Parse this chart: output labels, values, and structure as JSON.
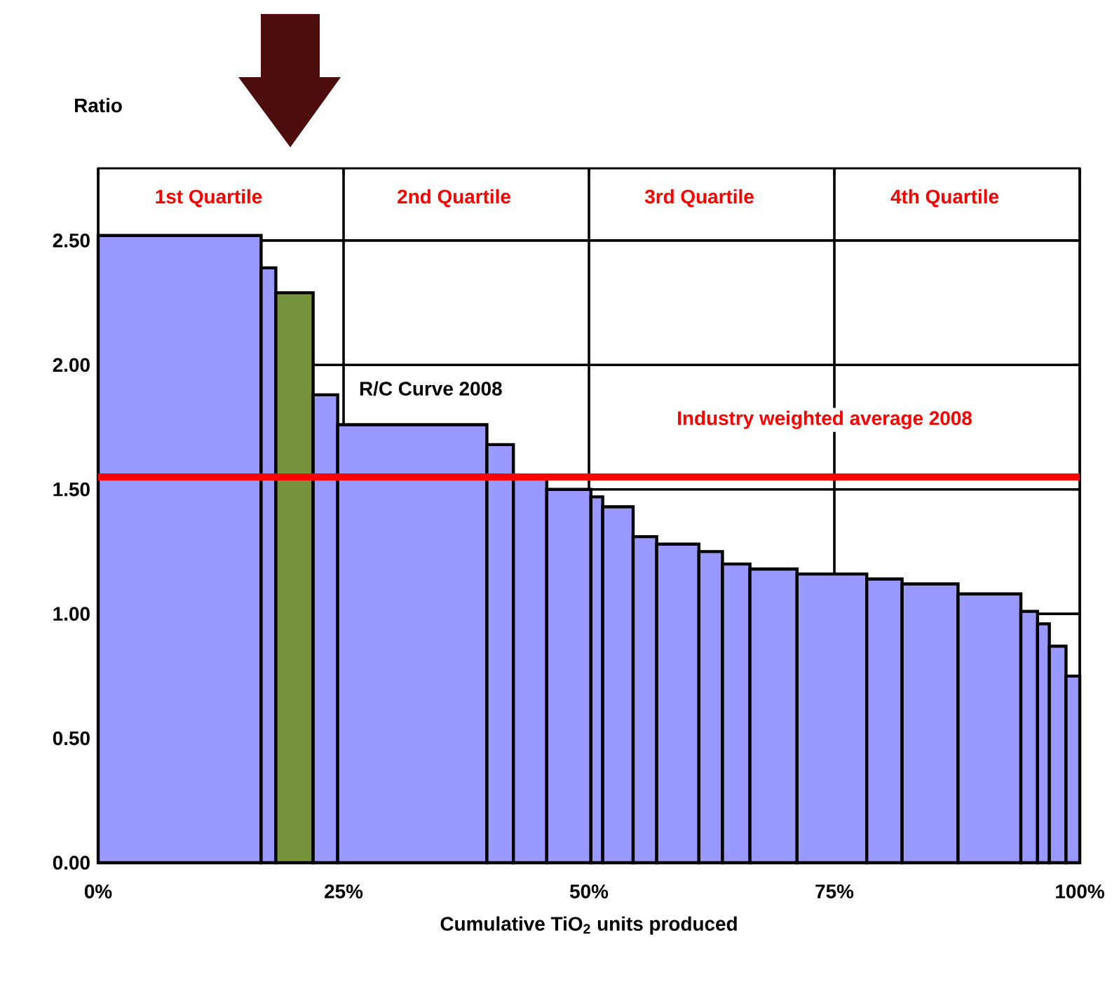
{
  "chart_data": {
    "type": "histogram",
    "xlabel": "Cumulative TiO$_{2}$ units produced",
    "ylabel": "Ratio",
    "bins": [
      0,
      16.6,
      18.1,
      21.9,
      24.4,
      39.6,
      42.3,
      45.7,
      50.2,
      51.4,
      54.5,
      56.9,
      61.2,
      63.6,
      66.4,
      71.2,
      78.3,
      81.9,
      87.6,
      94.0,
      95.7,
      96.9,
      98.6,
      100
    ],
    "values": [
      2.52,
      2.39,
      2.29,
      1.88,
      1.76,
      1.68,
      1.55,
      1.5,
      1.47,
      1.43,
      1.31,
      1.28,
      1.25,
      1.2,
      1.18,
      1.16,
      1.14,
      1.12,
      1.08,
      1.01,
      0.96,
      0.87,
      0.75
    ],
    "colors": [
      "#9999ff",
      "#9999ff",
      "#77933c",
      "#9999ff",
      "#9999ff",
      "#9999ff",
      "#9999ff",
      "#9999ff",
      "#9999ff",
      "#9999ff",
      "#9999ff",
      "#9999ff",
      "#9999ff",
      "#9999ff",
      "#9999ff",
      "#9999ff",
      "#9999ff",
      "#9999ff",
      "#9999ff",
      "#9999ff",
      "#9999ff",
      "#9999ff",
      "#9999ff"
    ],
    "xlim": [
      0,
      100
    ],
    "ylim": [
      0,
      2.79
    ],
    "xticks": [
      {
        "value": 0,
        "label": "0%"
      },
      {
        "value": 25,
        "label": "25%"
      },
      {
        "value": 50,
        "label": "50%"
      },
      {
        "value": 75,
        "label": "75%"
      },
      {
        "value": 100,
        "label": "100%"
      }
    ],
    "yticks": [
      {
        "value": 0,
        "label": "0.00"
      },
      {
        "value": 0.5,
        "label": "0.50"
      },
      {
        "value": 1,
        "label": "1.00"
      },
      {
        "value": 1.5,
        "label": "1.50"
      },
      {
        "value": 2,
        "label": "2.00"
      },
      {
        "value": 2.5,
        "label": "2.50"
      }
    ],
    "grid": true,
    "ref_lines": [
      {
        "axis": "y",
        "value": 1.55,
        "label": "Industry weighted average  2008",
        "color": "#ff0000"
      }
    ],
    "annotations": [
      "1st Quartile",
      "2nd Quartile",
      "3rd Quartile",
      "4th Quartile",
      "R/C Curve 2008"
    ]
  }
}
